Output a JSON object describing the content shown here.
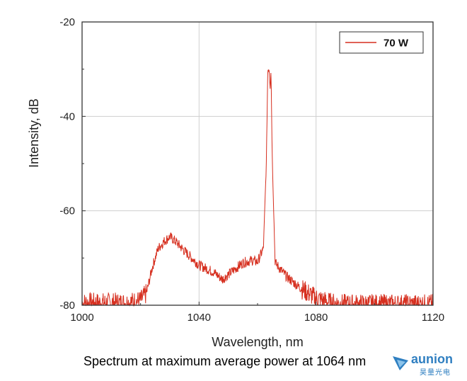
{
  "chart_data": {
    "type": "line",
    "title": "",
    "xlabel": "Wavelength, nm",
    "ylabel": "Intensity, dB",
    "xlim": [
      1000,
      1120
    ],
    "ylim": [
      -80,
      -20
    ],
    "xticks": [
      1000,
      1040,
      1080,
      1120
    ],
    "yticks": [
      -20,
      -40,
      -60,
      -80
    ],
    "grid": true,
    "legend_position": "top-right",
    "series": [
      {
        "name": "70 W",
        "color": "#d62f1f",
        "x": [
          1000,
          1005,
          1010,
          1015,
          1020,
          1022,
          1024,
          1026,
          1028,
          1030,
          1032,
          1035,
          1040,
          1045,
          1048,
          1050,
          1055,
          1058,
          1060,
          1062,
          1063,
          1063.5,
          1064,
          1064.3,
          1064.6,
          1065,
          1066,
          1068,
          1070,
          1075,
          1080,
          1085,
          1090,
          1100,
          1110,
          1120
        ],
        "y": [
          -79.5,
          -79.5,
          -79.5,
          -79.5,
          -79,
          -77.5,
          -72,
          -68,
          -66.5,
          -65.5,
          -66.5,
          -68.5,
          -71.5,
          -73,
          -74.5,
          -73.5,
          -71,
          -70.5,
          -70.8,
          -68,
          -50,
          -30,
          -30,
          -34,
          -30,
          -48,
          -71,
          -72.5,
          -74,
          -76.5,
          -78.5,
          -79.5,
          -79.8,
          -79.8,
          -79.8,
          -79.8
        ]
      }
    ]
  },
  "caption": "Spectrum at maximum average power at 1064 nm",
  "logo": {
    "word": "aunion",
    "sub": "昊量光电",
    "color": "#2f7fc1"
  }
}
